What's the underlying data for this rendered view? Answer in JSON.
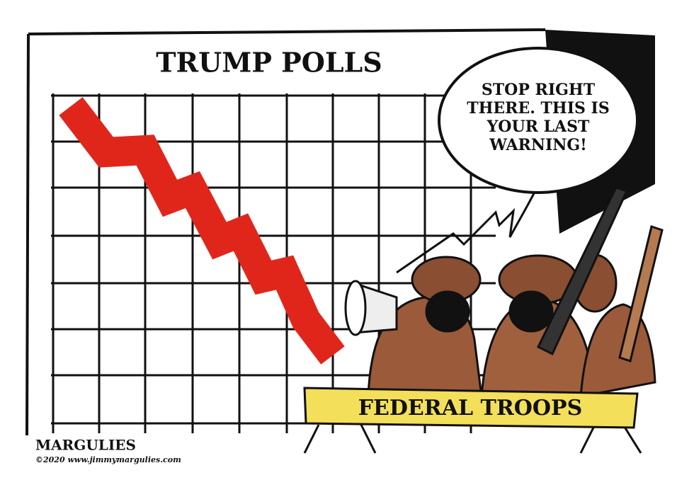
{
  "chart": {
    "title": "TRUMP POLLS"
  },
  "speech_bubble": {
    "lines": [
      "STOP RIGHT",
      "THERE. THIS IS",
      "YOUR LAST",
      "WARNING!"
    ]
  },
  "barricade": {
    "label": "FEDERAL TROOPS"
  },
  "signature": {
    "name": "MARGULIES",
    "credit": "©2020 www.jimmymargulies.com"
  }
}
